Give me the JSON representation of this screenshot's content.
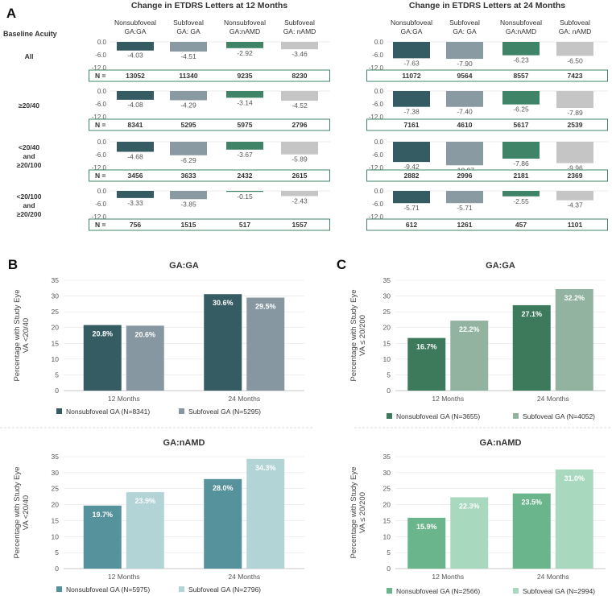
{
  "colors": {
    "ga_nonsub": "#365c63",
    "ga_sub": "#8a9aa3",
    "namd_nonsub": "#3f8466",
    "namd_sub": "#c5c5c5",
    "box_border": "#3f8466",
    "b_ga_nonsub": "#365c63",
    "b_ga_sub": "#8797a2",
    "b_namd_nonsub": "#56929b",
    "b_namd_sub": "#b3d4d6",
    "c_ga_nonsub": "#3d7a5c",
    "c_ga_sub": "#92b3a0",
    "c_namd_nonsub": "#6ab58b",
    "c_namd_sub": "#a8d8be"
  },
  "panel_a": {
    "letter": "A",
    "row_header": "Baseline Acuity",
    "n_label": "N =",
    "col_headers": [
      [
        "Nonsubfoveal",
        "GA:GA"
      ],
      [
        "Subfoveal",
        "GA: GA"
      ],
      [
        "Nonsubfoveal",
        "GA:nAMD"
      ],
      [
        "Subfoveal",
        "GA: nAMD"
      ]
    ],
    "col_headers_24": [
      [
        "Nonsubfoveal",
        "GA:GA"
      ],
      [
        "Subfoveal",
        "GA: GA"
      ],
      [
        "Nonsubfoveal",
        "GA:nAMD"
      ],
      [
        "Subfoveal",
        "GA: nAMD"
      ]
    ],
    "ticks": [
      "0.0",
      "-6.0",
      "-12.0"
    ],
    "blocks": [
      {
        "title": "Change in ETDRS Letters at 12 Months",
        "rows": [
          {
            "label": [
              "All"
            ],
            "values": [
              -4.03,
              -4.51,
              -2.92,
              -3.46
            ],
            "labels": [
              "-4.03",
              "-4.51",
              "-2.92",
              "-3.46"
            ],
            "n": [
              "13052",
              "11340",
              "9235",
              "8230"
            ]
          },
          {
            "label": [
              "≥20/40"
            ],
            "values": [
              -4.08,
              -4.29,
              -3.14,
              -4.52
            ],
            "labels": [
              "-4.08",
              "-4.29",
              "-3.14",
              "-4.52"
            ],
            "n": [
              "8341",
              "5295",
              "5975",
              "2796"
            ]
          },
          {
            "label": [
              "<20/40",
              "and",
              "≥20/100"
            ],
            "values": [
              -4.68,
              -6.29,
              -3.67,
              -5.89
            ],
            "labels": [
              "-4.68",
              "-6.29",
              "-3.67",
              "-5.89"
            ],
            "n": [
              "3456",
              "3633",
              "2432",
              "2615"
            ]
          },
          {
            "label": [
              "<20/100",
              "and",
              "≥20/200"
            ],
            "values": [
              -3.33,
              -3.85,
              -0.15,
              -2.43
            ],
            "labels": [
              "-3.33",
              "-3.85",
              "-0.15",
              "-2.43"
            ],
            "n": [
              "756",
              "1515",
              "517",
              "1557"
            ]
          }
        ]
      },
      {
        "title": "Change in ETDRS Letters at 24 Months",
        "rows": [
          {
            "values": [
              -7.63,
              -7.9,
              -6.23,
              -6.5
            ],
            "labels": [
              "-7.63",
              "-7.90",
              "-6.23",
              "-6.50"
            ],
            "n": [
              "11072",
              "9564",
              "8557",
              "7423"
            ]
          },
          {
            "values": [
              -7.38,
              -7.4,
              -6.25,
              -7.89
            ],
            "labels": [
              "-7.38",
              "-7.40",
              "-6.25",
              "-7.89"
            ],
            "n": [
              "7161",
              "4610",
              "5617",
              "2539"
            ]
          },
          {
            "values": [
              -9.42,
              -10.97,
              -7.86,
              -9.96
            ],
            "labels": [
              "-9.42",
              "-10.97",
              "-7.86",
              "-9.96"
            ],
            "n": [
              "2882",
              "2996",
              "2181",
              "2369"
            ]
          },
          {
            "values": [
              -5.71,
              -5.71,
              -2.55,
              -4.37
            ],
            "labels": [
              "-5.71",
              "-5.71",
              "-2.55",
              "-4.37"
            ],
            "n": [
              "612",
              "1261",
              "457",
              "1101"
            ]
          }
        ]
      }
    ]
  },
  "panel_b": {
    "letter": "B",
    "ylabel": [
      "Percentage with Study Eye",
      "VA <20/40"
    ],
    "charts": [
      {
        "title": "GA:GA",
        "categories": [
          "12 Months",
          "24 Months"
        ],
        "series": [
          {
            "name": "Nonsubfoveal GA (N=8341)",
            "values": [
              20.8,
              30.6
            ],
            "labels": [
              "20.8%",
              "30.6%"
            ]
          },
          {
            "name": "Subfoveal GA (N=5295)",
            "values": [
              20.6,
              29.5
            ],
            "labels": [
              "20.6%",
              "29.5%"
            ]
          }
        ],
        "yticks": [
          "0",
          "5",
          "10",
          "15",
          "20",
          "25",
          "30",
          "35"
        ]
      },
      {
        "title": "GA:nAMD",
        "categories": [
          "12 Months",
          "24 Months"
        ],
        "series": [
          {
            "name": "Nonsubfoveal GA (N=5975)",
            "values": [
              19.7,
              28.0
            ],
            "labels": [
              "19.7%",
              "28.0%"
            ]
          },
          {
            "name": "Subfoveal GA (N=2796)",
            "values": [
              23.9,
              34.3
            ],
            "labels": [
              "23.9%",
              "34.3%"
            ]
          }
        ],
        "yticks": [
          "0",
          "5",
          "10",
          "15",
          "20",
          "25",
          "30",
          "35"
        ]
      }
    ]
  },
  "panel_c": {
    "letter": "C",
    "ylabel": [
      "Percentage with Study Eye",
      "VA ≤ 20/200"
    ],
    "charts": [
      {
        "title": "GA:GA",
        "categories": [
          "12 Months",
          "24 Months"
        ],
        "series": [
          {
            "name": "Nonsubfoveal GA (N=3655)",
            "values": [
              16.7,
              27.1
            ],
            "labels": [
              "16.7%",
              "27.1%"
            ]
          },
          {
            "name": "Subfoveal GA (N=4052)",
            "values": [
              22.2,
              32.2
            ],
            "labels": [
              "22.2%",
              "32.2%"
            ]
          }
        ],
        "yticks": [
          "0",
          "5",
          "10",
          "15",
          "20",
          "25",
          "30",
          "35"
        ]
      },
      {
        "title": "GA:nAMD",
        "categories": [
          "12 Months",
          "24 Months"
        ],
        "series": [
          {
            "name": "Nonsubfoveal GA (N=2566)",
            "values": [
              15.9,
              23.5
            ],
            "labels": [
              "15.9%",
              "23.5%"
            ]
          },
          {
            "name": "Subfoveal GA (N=2994)",
            "values": [
              22.3,
              31.0
            ],
            "labels": [
              "22.3%",
              "31.0%"
            ]
          }
        ],
        "yticks": [
          "0",
          "5",
          "10",
          "15",
          "20",
          "25",
          "30",
          "35"
        ]
      }
    ]
  },
  "chart_data": [
    {
      "type": "bar",
      "title": "Change in ETDRS Letters at 12 Months",
      "categories": [
        "All",
        "≥20/40",
        "<20/40 and ≥20/100",
        "<20/100 and ≥20/200"
      ],
      "series": [
        {
          "name": "Nonsubfoveal GA:GA",
          "values": [
            -4.03,
            -4.08,
            -4.68,
            -3.33
          ]
        },
        {
          "name": "Subfoveal GA: GA",
          "values": [
            -4.51,
            -4.29,
            -6.29,
            -3.85
          ]
        },
        {
          "name": "Nonsubfoveal GA:nAMD",
          "values": [
            -2.92,
            -3.14,
            -3.67,
            -0.15
          ]
        },
        {
          "name": "Subfoveal GA: nAMD",
          "values": [
            -3.46,
            -4.52,
            -5.89,
            -2.43
          ]
        }
      ],
      "ylim": [
        -12,
        0
      ]
    },
    {
      "type": "bar",
      "title": "Change in ETDRS Letters at 24 Months",
      "categories": [
        "All",
        "≥20/40",
        "<20/40 and ≥20/100",
        "<20/100 and ≥20/200"
      ],
      "series": [
        {
          "name": "Nonsubfoveal GA:GA",
          "values": [
            -7.63,
            -7.38,
            -9.42,
            -5.71
          ]
        },
        {
          "name": "Subfoveal GA: GA",
          "values": [
            -7.9,
            -7.4,
            -10.97,
            -5.71
          ]
        },
        {
          "name": "Nonsubfoveal GA:nAMD",
          "values": [
            -6.23,
            -6.25,
            -7.86,
            -2.55
          ]
        },
        {
          "name": "Subfoveal GA: nAMD",
          "values": [
            -6.5,
            -7.89,
            -9.96,
            -4.37
          ]
        }
      ],
      "ylim": [
        -12,
        0
      ]
    },
    {
      "type": "bar",
      "title": "GA:GA",
      "ylabel": "Percentage with Study Eye VA <20/40",
      "categories": [
        "12 Months",
        "24 Months"
      ],
      "series": [
        {
          "name": "Nonsubfoveal GA (N=8341)",
          "values": [
            20.8,
            30.6
          ]
        },
        {
          "name": "Subfoveal GA (N=5295)",
          "values": [
            20.6,
            29.5
          ]
        }
      ],
      "ylim": [
        0,
        35
      ]
    },
    {
      "type": "bar",
      "title": "GA:nAMD",
      "ylabel": "Percentage with Study Eye VA <20/40",
      "categories": [
        "12 Months",
        "24 Months"
      ],
      "series": [
        {
          "name": "Nonsubfoveal GA (N=5975)",
          "values": [
            19.7,
            28.0
          ]
        },
        {
          "name": "Subfoveal GA (N=2796)",
          "values": [
            23.9,
            34.3
          ]
        }
      ],
      "ylim": [
        0,
        35
      ]
    },
    {
      "type": "bar",
      "title": "GA:GA",
      "ylabel": "Percentage with Study Eye VA ≤ 20/200",
      "categories": [
        "12 Months",
        "24 Months"
      ],
      "series": [
        {
          "name": "Nonsubfoveal GA (N=3655)",
          "values": [
            16.7,
            27.1
          ]
        },
        {
          "name": "Subfoveal GA (N=4052)",
          "values": [
            22.2,
            32.2
          ]
        }
      ],
      "ylim": [
        0,
        35
      ]
    },
    {
      "type": "bar",
      "title": "GA:nAMD",
      "ylabel": "Percentage with Study Eye VA ≤ 20/200",
      "categories": [
        "12 Months",
        "24 Months"
      ],
      "series": [
        {
          "name": "Nonsubfoveal GA (N=2566)",
          "values": [
            15.9,
            23.5
          ]
        },
        {
          "name": "Subfoveal GA (N=2994)",
          "values": [
            22.3,
            31.0
          ]
        }
      ],
      "ylim": [
        0,
        35
      ]
    }
  ]
}
